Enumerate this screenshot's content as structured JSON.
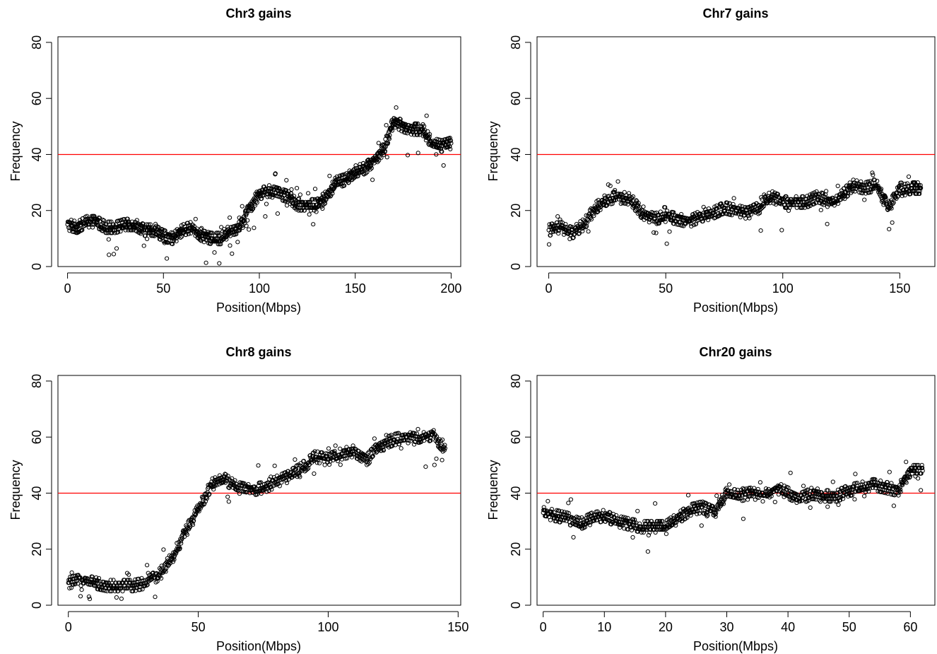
{
  "figure": {
    "panels": [
      {
        "title": "Chr3 gains",
        "xlabel": "Position(Mbps)",
        "ylabel": "Frequency"
      },
      {
        "title": "Chr7 gains",
        "xlabel": "Position(Mbps)",
        "ylabel": "Frequency"
      },
      {
        "title": "Chr8 gains",
        "xlabel": "Position(Mbps)",
        "ylabel": "Frequency"
      },
      {
        "title": "Chr20 gains",
        "xlabel": "Position(Mbps)",
        "ylabel": "Frequency"
      }
    ]
  },
  "chart_data": [
    {
      "type": "scatter",
      "title": "Chr3 gains",
      "xlabel": "Position(Mbps)",
      "ylabel": "Frequency",
      "xlim": [
        -5,
        205
      ],
      "ylim": [
        0,
        82
      ],
      "xticks": [
        0,
        50,
        100,
        150,
        200
      ],
      "yticks": [
        0,
        20,
        40,
        60,
        80
      ],
      "hline": {
        "y": 40,
        "color": "#ff0000"
      },
      "grid": false,
      "series": [
        {
          "x": [
            0,
            5,
            10,
            15,
            20,
            25,
            30,
            35,
            40,
            45,
            50,
            55,
            60,
            65,
            70,
            75,
            80,
            85,
            90,
            95,
            100,
            105,
            110,
            115,
            120,
            125,
            130,
            135,
            140,
            145,
            150,
            155,
            160,
            165,
            170,
            175,
            180,
            185,
            190,
            195,
            200
          ],
          "y": [
            15,
            14,
            16,
            16,
            14,
            14,
            15,
            15,
            13,
            13,
            11,
            10,
            13,
            14,
            11,
            10,
            10,
            13,
            14,
            21,
            26,
            27,
            26,
            25,
            22,
            22,
            22,
            25,
            30,
            31,
            34,
            35,
            38,
            42,
            52,
            50,
            49,
            49,
            44,
            43,
            44
          ]
        }
      ]
    },
    {
      "type": "scatter",
      "title": "Chr7 gains",
      "xlabel": "Position(Mbps)",
      "ylabel": "Frequency",
      "xlim": [
        -5,
        165
      ],
      "ylim": [
        0,
        82
      ],
      "xticks": [
        0,
        50,
        100,
        150
      ],
      "yticks": [
        0,
        20,
        40,
        60,
        80
      ],
      "hline": {
        "y": 40,
        "color": "#ff0000"
      },
      "grid": false,
      "series": [
        {
          "x": [
            0,
            5,
            10,
            15,
            20,
            25,
            30,
            35,
            40,
            45,
            50,
            55,
            60,
            65,
            70,
            75,
            80,
            85,
            90,
            95,
            100,
            105,
            110,
            115,
            120,
            125,
            130,
            135,
            140,
            145,
            150,
            155,
            159
          ],
          "y": [
            13,
            14,
            12,
            15,
            21,
            24,
            25,
            24,
            19,
            17,
            18,
            17,
            16,
            18,
            19,
            21,
            20,
            19,
            21,
            25,
            23,
            23,
            23,
            25,
            23,
            25,
            29,
            28,
            29,
            21,
            27,
            28,
            28
          ]
        }
      ]
    },
    {
      "type": "scatter",
      "title": "Chr8 gains",
      "xlabel": "Position(Mbps)",
      "ylabel": "Frequency",
      "xlim": [
        -4,
        151
      ],
      "ylim": [
        0,
        82
      ],
      "xticks": [
        0,
        50,
        100,
        150
      ],
      "yticks": [
        0,
        20,
        40,
        60,
        80
      ],
      "hline": {
        "y": 40,
        "color": "#ff0000"
      },
      "grid": false,
      "series": [
        {
          "x": [
            0,
            5,
            10,
            15,
            20,
            25,
            30,
            35,
            40,
            45,
            50,
            55,
            60,
            65,
            70,
            75,
            80,
            85,
            90,
            95,
            100,
            105,
            110,
            115,
            120,
            125,
            130,
            135,
            140,
            145
          ],
          "y": [
            8,
            9,
            8,
            7,
            7,
            7,
            8,
            11,
            17,
            26,
            34,
            43,
            45,
            42,
            41,
            42,
            44,
            46,
            49,
            53,
            52,
            54,
            55,
            52,
            57,
            59,
            60,
            59,
            61,
            56
          ]
        }
      ]
    },
    {
      "type": "scatter",
      "title": "Chr20 gains",
      "xlabel": "Position(Mbps)",
      "ylabel": "Frequency",
      "xlim": [
        -1,
        64
      ],
      "ylim": [
        0,
        82
      ],
      "xticks": [
        0,
        10,
        20,
        30,
        40,
        50,
        60
      ],
      "yticks": [
        0,
        20,
        40,
        60,
        80
      ],
      "hline": {
        "y": 40,
        "color": "#ff0000"
      },
      "grid": false,
      "series": [
        {
          "x": [
            0,
            2,
            4,
            6,
            8,
            10,
            12,
            14,
            16,
            18,
            20,
            22,
            24,
            26,
            28,
            30,
            32,
            34,
            36,
            38,
            40,
            42,
            44,
            46,
            48,
            50,
            52,
            54,
            56,
            58,
            60,
            62
          ],
          "y": [
            33,
            32,
            31,
            29,
            31,
            32,
            30,
            29,
            28,
            28,
            28,
            31,
            34,
            35,
            33,
            40,
            39,
            40,
            39,
            42,
            40,
            38,
            40,
            39,
            39,
            41,
            42,
            43,
            42,
            41,
            48,
            48
          ]
        }
      ]
    }
  ]
}
